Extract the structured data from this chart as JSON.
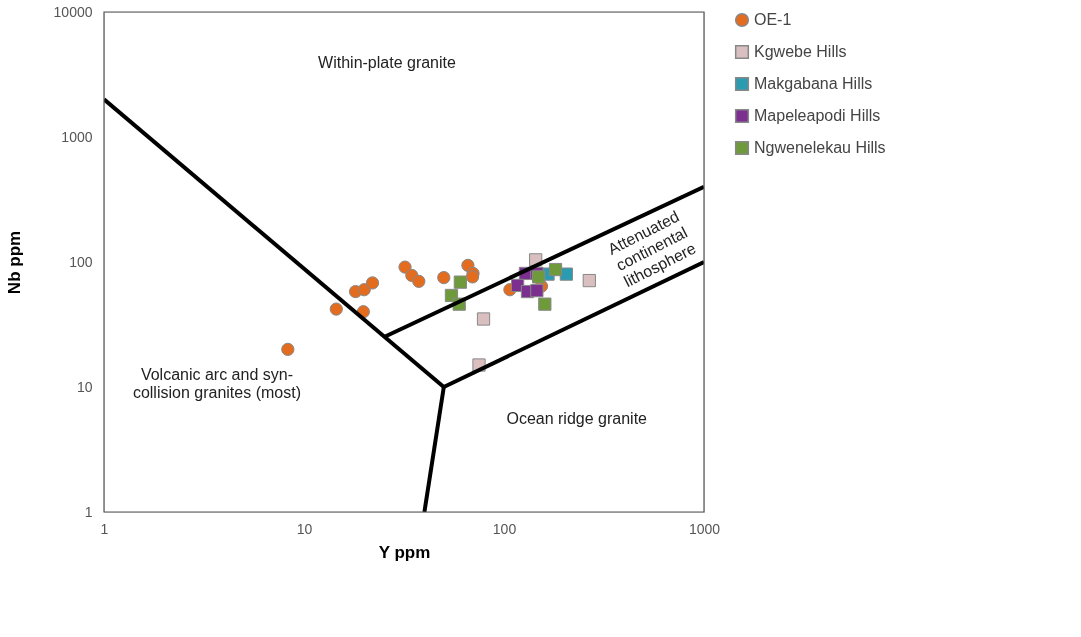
{
  "chart_data": {
    "type": "scatter",
    "xlabel": "Y ppm",
    "ylabel": "Nb ppm",
    "log": "xy",
    "grid": false,
    "legend": "right",
    "xlim": [
      1,
      1000
    ],
    "xticks": [
      1,
      10,
      100,
      1000
    ],
    "ylim": [
      1,
      10000
    ],
    "yticks": [
      1,
      10,
      100,
      1000,
      10000
    ],
    "annotations": [
      "Within-plate granite",
      "Volcanic arc and syn-\ncollision granites (most)",
      "Ocean ridge granite",
      "Attenuated\ncontinental\nlithosphere"
    ],
    "series": [
      {
        "name": "OE-1",
        "color": "#e46c1e",
        "marker": "circle",
        "x": [
          8.3,
          14.5,
          18.1,
          20,
          22,
          19.8,
          32,
          34.6,
          37.5,
          50,
          66,
          70,
          69.6,
          107,
          154
        ],
        "values": [
          20,
          42,
          58,
          60,
          68,
          40,
          91,
          78,
          70,
          75,
          94,
          81,
          76,
          60,
          64
        ]
      },
      {
        "name": "Kgwebe Hills",
        "color": "#d9bfc0",
        "marker": "square",
        "x": [
          79,
          75,
          144,
          267
        ],
        "values": [
          35,
          15,
          104,
          71
        ]
      },
      {
        "name": "Makgabana Hills",
        "color": "#2a9bb0",
        "marker": "square",
        "x": [
          166,
          205
        ],
        "values": [
          80,
          80
        ]
      },
      {
        "name": "Mapeleapodi Hills",
        "color": "#7b2f8e",
        "marker": "square",
        "x": [
          128,
          146,
          117,
          131,
          146
        ],
        "values": [
          81,
          81,
          65,
          58,
          59
        ]
      },
      {
        "name": "Ngwenelekau Hills",
        "color": "#6e9a3c",
        "marker": "square",
        "x": [
          60.5,
          54.6,
          59.7,
          149,
          181,
          160
        ],
        "values": [
          69,
          54,
          46,
          76,
          87,
          46
        ]
      },
      {
        "type": "line",
        "color": "#000000",
        "x": [
          1,
          50
        ],
        "values": [
          2000,
          10
        ]
      },
      {
        "type": "line",
        "color": "#000000",
        "x": [
          50,
          40
        ],
        "values": [
          10,
          1
        ]
      },
      {
        "type": "line",
        "color": "#000000",
        "x": [
          50,
          1000
        ],
        "values": [
          10,
          100
        ]
      },
      {
        "type": "line",
        "color": "#000000",
        "x": [
          25,
          1000
        ],
        "values": [
          25,
          400
        ]
      }
    ]
  }
}
